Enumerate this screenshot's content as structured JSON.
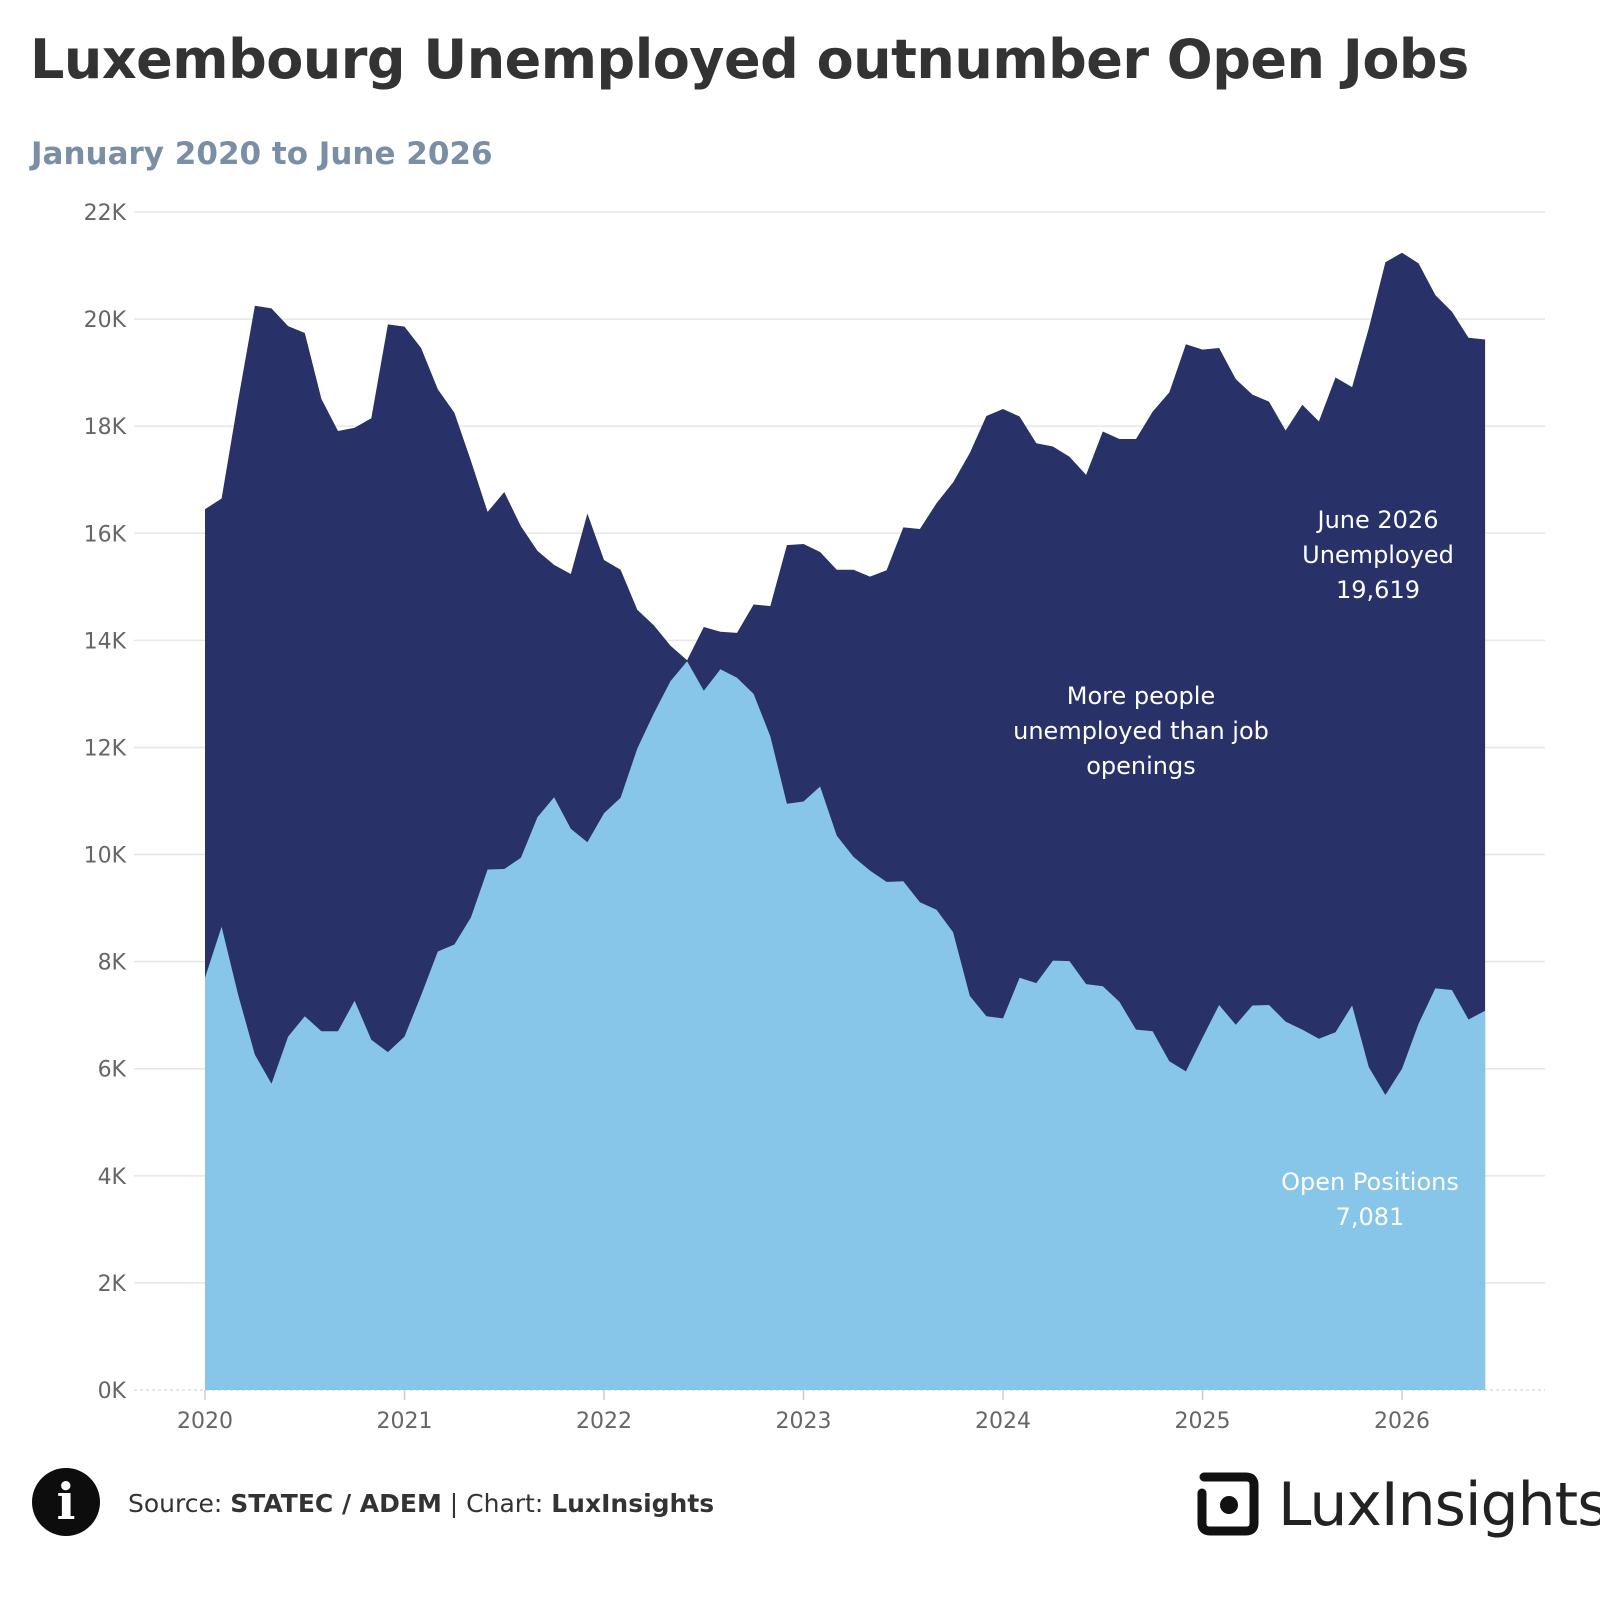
{
  "header": {
    "title": "Luxembourg Unemployed outnumber Open Jobs",
    "subtitle": "January 2020 to June 2026"
  },
  "footer": {
    "source_prefix": "Source: ",
    "source_name": "STATEC / ADEM",
    "separator": " | Chart: ",
    "chart_by": "LuxInsights",
    "info_icon": "info-icon",
    "logo_text": "LuxInsights"
  },
  "colors": {
    "unemployed": "#283168",
    "open_positions": "#87c5e9",
    "annotation_text": "#ffffff",
    "grid": "#e6e6e6",
    "axis_text": "#666666"
  },
  "chart_data": {
    "type": "area",
    "title": "Luxembourg Unemployed outnumber Open Jobs",
    "subtitle": "January 2020 to June 2026",
    "xlabel": "",
    "ylabel": "",
    "x_range": [
      "2020-01",
      "2026-06"
    ],
    "x_ticks": [
      "2020",
      "2021",
      "2022",
      "2023",
      "2024",
      "2025",
      "2026"
    ],
    "y_ticks": [
      "0K",
      "2K",
      "4K",
      "6K",
      "8K",
      "10K",
      "12K",
      "14K",
      "16K",
      "18K",
      "20K",
      "22K"
    ],
    "ylim": [
      0,
      22000
    ],
    "grid": true,
    "legend": "none",
    "series": [
      {
        "key": "unemployed",
        "values": [
          16450,
          16650,
          18500,
          20250,
          20200,
          19870,
          19740,
          18510,
          17910,
          17970,
          18150,
          19900,
          19860,
          19460,
          18690,
          18250,
          17350,
          16400,
          16770,
          16130,
          15670,
          15410,
          15240,
          16370,
          15500,
          15320,
          14570,
          14280,
          13900,
          13630,
          14250,
          14160,
          14140,
          14670,
          14640,
          15780,
          15800,
          15650,
          15320,
          15320,
          15190,
          15310,
          16110,
          16080,
          16560,
          16950,
          17500,
          18190,
          18320,
          18180,
          17680,
          17620,
          17430,
          17090,
          17900,
          17760,
          17760,
          18270,
          18630,
          19530,
          19430,
          19460,
          18880,
          18590,
          18460,
          17920,
          18400,
          18090,
          18910,
          18730,
          19830,
          21060,
          21240,
          21040,
          20450,
          20140,
          19650,
          19619
        ]
      },
      {
        "key": "open_positions",
        "values": [
          7700,
          8650,
          7370,
          6260,
          5720,
          6600,
          6980,
          6700,
          6700,
          7270,
          6540,
          6310,
          6600,
          7370,
          8190,
          8320,
          8830,
          9720,
          9730,
          9940,
          10700,
          11070,
          10480,
          10230,
          10770,
          11060,
          11980,
          12640,
          13240,
          13610,
          13060,
          13460,
          13300,
          13000,
          12210,
          10950,
          10990,
          11270,
          10350,
          9960,
          9700,
          9490,
          9500,
          9110,
          8970,
          8550,
          7360,
          6980,
          6940,
          7700,
          7600,
          8020,
          8010,
          7580,
          7540,
          7250,
          6730,
          6700,
          6140,
          5950,
          6580,
          7190,
          6820,
          7180,
          7190,
          6880,
          6730,
          6560,
          6680,
          7180,
          6030,
          5510,
          6000,
          6840,
          7500,
          7470,
          6920,
          7081
        ]
      }
    ],
    "annotations": [
      {
        "lines": [
          "June 2026",
          "Unemployed",
          "19,619"
        ],
        "anchor": "unemployed-end"
      },
      {
        "lines": [
          "More people",
          "unemployed than job",
          "openings"
        ],
        "anchor": "gap"
      },
      {
        "lines": [
          "Open Positions",
          "7,081"
        ],
        "anchor": "open-positions-end"
      }
    ]
  }
}
